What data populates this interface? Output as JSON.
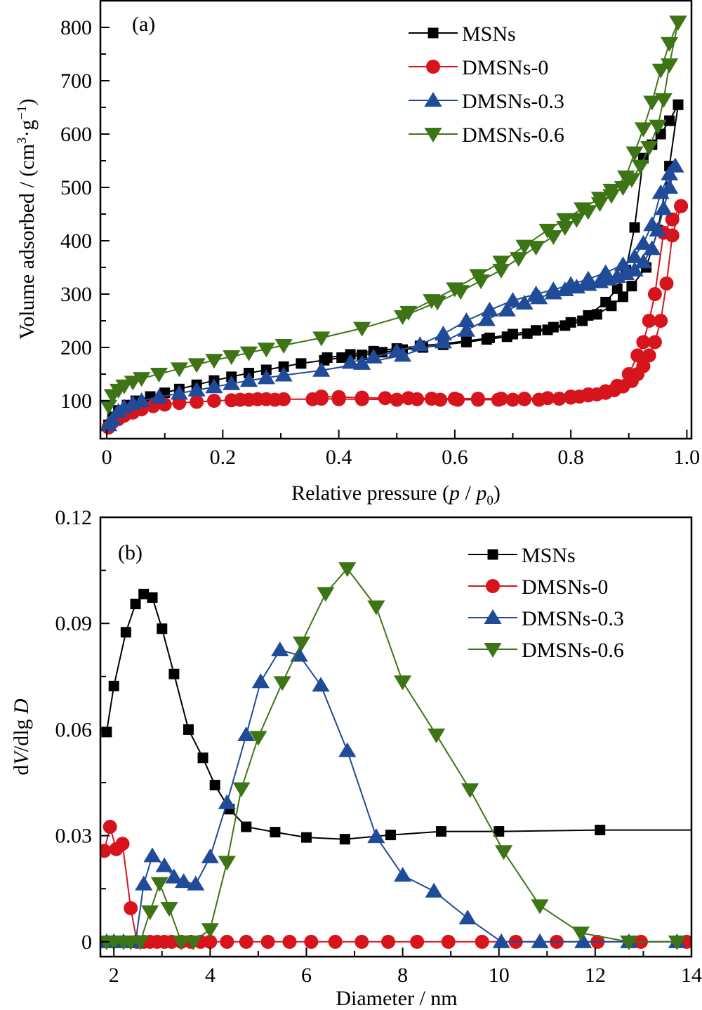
{
  "chart_data": [
    {
      "id": "a",
      "type": "line",
      "panel_label": "(a)",
      "title": "",
      "xlabel": "Relative pressure (p / p0)",
      "xlabel_parts": [
        "Relative pressure (",
        "p",
        " / ",
        "p",
        "0",
        ")"
      ],
      "ylabel": "Volume adsorbed / (cm3·g−1)",
      "ylabel_parts": [
        "Volume adsorbed / (cm",
        "3",
        "·g",
        "−1",
        ")"
      ],
      "xlim": [
        -0.011,
        1.008
      ],
      "ylim": [
        29,
        850
      ],
      "xticks": [
        0,
        0.2,
        0.4,
        0.6,
        0.8,
        1.0
      ],
      "xtick_labels": [
        "0",
        "0.2",
        "0.4",
        "0.6",
        "0.8",
        "1.0"
      ],
      "xminor": [
        0.1,
        0.3,
        0.5,
        0.7,
        0.9
      ],
      "yticks": [
        100,
        200,
        300,
        400,
        500,
        600,
        700,
        800
      ],
      "ytick_labels": [
        "100",
        "200",
        "300",
        "400",
        "500",
        "600",
        "700",
        "800"
      ],
      "yminor": [
        150,
        250,
        350,
        450,
        550,
        650,
        750
      ],
      "grid": false,
      "legend_position": "top-right",
      "series": [
        {
          "name": "MSNs",
          "color": "#000000",
          "marker": "square",
          "adsorption": {
            "x": [
              0.003,
              0.01,
              0.02,
              0.035,
              0.05,
              0.075,
              0.1,
              0.125,
              0.155,
              0.185,
              0.215,
              0.245,
              0.275,
              0.305,
              0.335,
              0.375,
              0.405,
              0.44,
              0.475,
              0.51,
              0.545,
              0.58,
              0.62,
              0.655,
              0.69,
              0.725,
              0.76,
              0.79,
              0.82,
              0.845,
              0.87,
              0.89,
              0.905,
              0.93,
              0.95,
              0.97,
              0.985
            ],
            "y": [
              55,
              70,
              82,
              92,
              100,
              108,
              115,
              122,
              130,
              138,
              145,
              152,
              158,
              164,
              170,
              176,
              181,
              186,
              191,
              196,
              200,
              205,
              210,
              215,
              220,
              226,
              233,
              241,
              250,
              262,
              278,
              295,
              315,
              350,
              420,
              540,
              655
            ]
          },
          "desorption": {
            "x": [
              0.985,
              0.97,
              0.955,
              0.94,
              0.925,
              0.91,
              0.895,
              0.88,
              0.86,
              0.83,
              0.8,
              0.77,
              0.74,
              0.7,
              0.66,
              0.62,
              0.58,
              0.54,
              0.5,
              0.46,
              0.42,
              0.38
            ],
            "y": [
              655,
              625,
              600,
              580,
              555,
              425,
              345,
              310,
              285,
              260,
              247,
              238,
              232,
              225,
              218,
              212,
              207,
              203,
              198,
              193,
              187,
              181
            ]
          }
        },
        {
          "name": "DMSNs-0",
          "color": "#d7141c",
          "marker": "circle",
          "adsorption": {
            "x": [
              0.003,
              0.01,
              0.02,
              0.03,
              0.045,
              0.06,
              0.08,
              0.1,
              0.125,
              0.155,
              0.185,
              0.215,
              0.23,
              0.245,
              0.26,
              0.275,
              0.29,
              0.305,
              0.355,
              0.37,
              0.4,
              0.44,
              0.5,
              0.535,
              0.575,
              0.605,
              0.64,
              0.675,
              0.7,
              0.72,
              0.745,
              0.78,
              0.8,
              0.815,
              0.83,
              0.845,
              0.86,
              0.875,
              0.89,
              0.905,
              0.915,
              0.925,
              0.935,
              0.945,
              0.955,
              0.965,
              0.975,
              0.99
            ],
            "y": [
              50,
              60,
              66,
              72,
              78,
              84,
              90,
              93,
              96,
              98,
              100,
              101,
              102,
              102,
              103,
              103,
              102,
              103,
              103,
              104,
              103,
              103,
              102,
              103,
              102,
              102,
              102,
              102,
              102,
              103,
              102,
              104,
              106,
              108,
              110,
              112,
              115,
              120,
              127,
              137,
              150,
              165,
              185,
              210,
              250,
              320,
              410,
              465
            ]
          },
          "desorption": {
            "x": [
              0.99,
              0.975,
              0.96,
              0.945,
              0.935,
              0.925,
              0.915,
              0.9,
              0.88,
              0.86,
              0.83,
              0.8,
              0.76,
              0.72,
              0.68,
              0.64,
              0.6,
              0.56,
              0.52,
              0.48,
              0.44,
              0.4,
              0.37
            ],
            "y": [
              465,
              440,
              415,
              300,
              250,
              210,
              185,
              150,
              128,
              118,
              112,
              108,
              105,
              104,
              104,
              104,
              104,
              104,
              105,
              105,
              106,
              107,
              108
            ]
          }
        },
        {
          "name": "DMSNs-0.3",
          "color": "#1f4b99",
          "marker": "triangle-up",
          "adsorption": {
            "x": [
              0.003,
              0.01,
              0.02,
              0.03,
              0.045,
              0.06,
              0.09,
              0.125,
              0.155,
              0.185,
              0.215,
              0.245,
              0.275,
              0.305,
              0.37,
              0.44,
              0.51,
              0.58,
              0.62,
              0.655,
              0.69,
              0.72,
              0.745,
              0.77,
              0.79,
              0.81,
              0.83,
              0.85,
              0.865,
              0.88,
              0.895,
              0.91,
              0.925,
              0.94,
              0.95,
              0.96,
              0.97,
              0.98
            ],
            "y": [
              55,
              65,
              80,
              88,
              95,
              100,
              107,
              114,
              120,
              126,
              132,
              138,
              143,
              148,
              157,
              170,
              185,
              210,
              232,
              252,
              270,
              283,
              293,
              302,
              308,
              313,
              318,
              323,
              328,
              333,
              338,
              345,
              360,
              385,
              420,
              460,
              500,
              540
            ]
          },
          "desorption": {
            "x": [
              0.98,
              0.97,
              0.955,
              0.94,
              0.925,
              0.91,
              0.89,
              0.86,
              0.83,
              0.8,
              0.77,
              0.74,
              0.7,
              0.66,
              0.62,
              0.58,
              0.54,
              0.5,
              0.46,
              0.42
            ],
            "y": [
              540,
              525,
              490,
              430,
              395,
              370,
              355,
              340,
              328,
              318,
              308,
              300,
              288,
              270,
              250,
              225,
              205,
              193,
              182,
              172
            ]
          }
        },
        {
          "name": "DMSNs-0.6",
          "color": "#3d7416",
          "marker": "triangle-down",
          "adsorption": {
            "x": [
              0.003,
              0.01,
              0.02,
              0.03,
              0.045,
              0.06,
              0.09,
              0.125,
              0.155,
              0.185,
              0.215,
              0.245,
              0.275,
              0.305,
              0.37,
              0.44,
              0.51,
              0.57,
              0.61,
              0.645,
              0.68,
              0.71,
              0.74,
              0.77,
              0.79,
              0.81,
              0.83,
              0.85,
              0.87,
              0.89,
              0.905,
              0.92,
              0.935,
              0.95,
              0.96,
              0.97,
              0.985
            ],
            "y": [
              90,
              110,
              120,
              128,
              135,
              142,
              150,
              160,
              168,
              176,
              183,
              190,
              197,
              204,
              218,
              236,
              258,
              285,
              305,
              325,
              345,
              367,
              388,
              408,
              425,
              440,
              455,
              470,
              485,
              500,
              515,
              540,
              575,
              615,
              665,
              730,
              810
            ]
          },
          "desorption": {
            "x": [
              0.985,
              0.97,
              0.955,
              0.94,
              0.925,
              0.91,
              0.895,
              0.87,
              0.85,
              0.82,
              0.79,
              0.76,
              0.72,
              0.68,
              0.64,
              0.6,
              0.56,
              0.52
            ],
            "y": [
              810,
              770,
              720,
              660,
              610,
              565,
              520,
              495,
              480,
              460,
              440,
              420,
              390,
              360,
              335,
              310,
              288,
              266
            ]
          }
        }
      ]
    },
    {
      "id": "b",
      "type": "line",
      "panel_label": "(b)",
      "title": "",
      "xlabel": "Diameter / nm",
      "ylabel": "dV/dlg D",
      "ylabel_parts": [
        "d",
        "V",
        "/dlg ",
        "D"
      ],
      "xlim": [
        1.72,
        14.0
      ],
      "ylim": [
        -0.0042,
        0.12
      ],
      "xticks": [
        2,
        4,
        6,
        8,
        10,
        12,
        14
      ],
      "xtick_labels": [
        "2",
        "4",
        "6",
        "8",
        "10",
        "12",
        "14"
      ],
      "xminor": [
        3,
        5,
        7,
        9,
        11,
        13
      ],
      "yticks": [
        0,
        0.03,
        0.06,
        0.09,
        0.12
      ],
      "ytick_labels": [
        "0",
        "0.03",
        "0.06",
        "0.09",
        "0.12"
      ],
      "yminor": [
        0.015,
        0.045,
        0.075,
        0.105
      ],
      "grid": false,
      "legend_position": "top-right",
      "series": [
        {
          "name": "MSNs",
          "color": "#000000",
          "marker": "square",
          "x": [
            1.85,
            2.0,
            2.25,
            2.45,
            2.62,
            2.8,
            3.0,
            3.25,
            3.55,
            3.85,
            4.1,
            4.4,
            4.75,
            5.35,
            6.0,
            6.8,
            7.75,
            8.8,
            10.0,
            12.1,
            14.0
          ],
          "y": [
            0.0593,
            0.0723,
            0.0875,
            0.0955,
            0.0983,
            0.0973,
            0.0885,
            0.0757,
            0.06,
            0.052,
            0.0443,
            0.0375,
            0.0325,
            0.031,
            0.0295,
            0.029,
            0.0302,
            0.0312,
            0.0312,
            0.0316,
            0.0316
          ]
        },
        {
          "name": "DMSNs-0",
          "color": "#d7141c",
          "marker": "circle",
          "x": [
            1.8,
            1.92,
            2.05,
            2.18,
            2.35,
            2.48,
            2.62,
            2.75,
            2.9,
            3.05,
            3.2,
            3.4,
            3.6,
            3.8,
            4.0,
            4.35,
            4.75,
            5.2,
            5.65,
            6.1,
            6.6,
            7.15,
            7.7,
            8.3,
            8.95,
            9.65,
            10.35,
            11.2,
            12.05,
            12.95,
            13.9
          ],
          "y": [
            0.0257,
            0.0325,
            0.0262,
            0.0277,
            0.0095,
            0.0,
            0.0,
            0.0,
            0.0,
            0.0,
            0.0,
            0.0,
            0.0,
            0.0,
            0.0,
            0.0,
            0.0,
            0.0,
            0.0,
            0.0,
            0.0,
            0.0,
            0.0,
            0.0,
            0.0,
            0.0,
            0.0,
            0.0,
            0.0,
            0.0,
            0.0
          ]
        },
        {
          "name": "DMSNs-0.3",
          "color": "#1f4b99",
          "marker": "triangle-up",
          "x": [
            1.85,
            2.0,
            2.2,
            2.45,
            2.62,
            2.8,
            3.05,
            3.25,
            3.45,
            3.7,
            4.0,
            4.35,
            4.75,
            5.05,
            5.45,
            5.85,
            6.3,
            6.85,
            7.45,
            8.0,
            8.65,
            9.35,
            10.05,
            10.85,
            11.75,
            12.7,
            13.7
          ],
          "y": [
            0.0,
            0.0,
            0.0,
            0.0,
            0.0163,
            0.0243,
            0.0215,
            0.0183,
            0.017,
            0.0163,
            0.024,
            0.0393,
            0.0585,
            0.0735,
            0.0825,
            0.081,
            0.0725,
            0.054,
            0.0297,
            0.0188,
            0.0143,
            0.0067,
            0.0,
            0.0,
            0.0,
            0.0,
            0.0
          ]
        },
        {
          "name": "DMSNs-0.6",
          "color": "#3d7416",
          "marker": "triangle-down",
          "x": [
            1.85,
            2.0,
            2.2,
            2.35,
            2.55,
            2.75,
            2.95,
            3.15,
            3.4,
            3.65,
            4.0,
            4.35,
            4.65,
            5.0,
            5.5,
            5.9,
            6.4,
            6.85,
            7.45,
            8.0,
            8.7,
            9.4,
            10.1,
            10.85,
            11.7,
            12.7,
            13.7
          ],
          "y": [
            0.0,
            0.0,
            0.0,
            0.0,
            0.0,
            0.0085,
            0.0165,
            0.0095,
            0.0,
            0.0,
            0.0035,
            0.0225,
            0.0433,
            0.0578,
            0.0733,
            0.0845,
            0.0985,
            0.1055,
            0.0947,
            0.0735,
            0.0585,
            0.043,
            0.0255,
            0.0102,
            0.0025,
            0.0,
            0.0
          ]
        }
      ]
    }
  ]
}
